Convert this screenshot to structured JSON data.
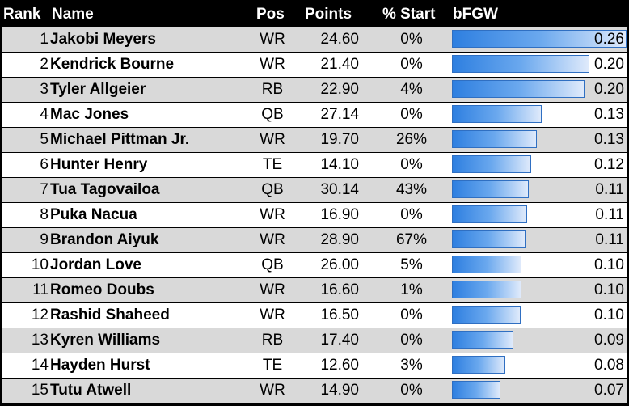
{
  "headers": {
    "rank": "Rank",
    "name": "Name",
    "pos": "Pos",
    "points": "Points",
    "start": "% Start",
    "bfgw": "bFGW"
  },
  "colors": {
    "header_bg": "#000000",
    "stripe": "#d9d9d9",
    "bar_start": "#2e7fe0",
    "bar_end": "#dfeafb"
  },
  "chart_data": {
    "type": "table",
    "bar_column": "bFGW",
    "bar_max": 0.26,
    "rows": [
      {
        "rank": "1",
        "name": "Jakobi Meyers",
        "pos": "WR",
        "points": "24.60",
        "start": "0%",
        "bfgw": "0.26",
        "value": 0.26
      },
      {
        "rank": "2",
        "name": "Kendrick Bourne",
        "pos": "WR",
        "points": "21.40",
        "start": "0%",
        "bfgw": "0.20",
        "value": 0.205
      },
      {
        "rank": "3",
        "name": "Tyler Allgeier",
        "pos": "RB",
        "points": "22.90",
        "start": "4%",
        "bfgw": "0.20",
        "value": 0.198
      },
      {
        "rank": "4",
        "name": "Mac Jones",
        "pos": "QB",
        "points": "27.14",
        "start": "0%",
        "bfgw": "0.13",
        "value": 0.134
      },
      {
        "rank": "5",
        "name": "Michael Pittman Jr.",
        "pos": "WR",
        "points": "19.70",
        "start": "26%",
        "bfgw": "0.13",
        "value": 0.126
      },
      {
        "rank": "6",
        "name": "Hunter Henry",
        "pos": "TE",
        "points": "14.10",
        "start": "0%",
        "bfgw": "0.12",
        "value": 0.118
      },
      {
        "rank": "7",
        "name": "Tua Tagovailoa",
        "pos": "QB",
        "points": "30.14",
        "start": "43%",
        "bfgw": "0.11",
        "value": 0.114
      },
      {
        "rank": "8",
        "name": "Puka Nacua",
        "pos": "WR",
        "points": "16.90",
        "start": "0%",
        "bfgw": "0.11",
        "value": 0.112
      },
      {
        "rank": "9",
        "name": "Brandon Aiyuk",
        "pos": "WR",
        "points": "28.90",
        "start": "67%",
        "bfgw": "0.11",
        "value": 0.11
      },
      {
        "rank": "10",
        "name": "Jordan Love",
        "pos": "QB",
        "points": "26.00",
        "start": "5%",
        "bfgw": "0.10",
        "value": 0.104
      },
      {
        "rank": "11",
        "name": "Romeo Doubs",
        "pos": "WR",
        "points": "16.60",
        "start": "1%",
        "bfgw": "0.10",
        "value": 0.103
      },
      {
        "rank": "12",
        "name": "Rashid Shaheed",
        "pos": "WR",
        "points": "16.50",
        "start": "0%",
        "bfgw": "0.10",
        "value": 0.102
      },
      {
        "rank": "13",
        "name": "Kyren Williams",
        "pos": "RB",
        "points": "17.40",
        "start": "0%",
        "bfgw": "0.09",
        "value": 0.092
      },
      {
        "rank": "14",
        "name": "Hayden Hurst",
        "pos": "TE",
        "points": "12.60",
        "start": "3%",
        "bfgw": "0.08",
        "value": 0.08
      },
      {
        "rank": "15",
        "name": "Tutu Atwell",
        "pos": "WR",
        "points": "14.90",
        "start": "0%",
        "bfgw": "0.07",
        "value": 0.072
      }
    ]
  }
}
